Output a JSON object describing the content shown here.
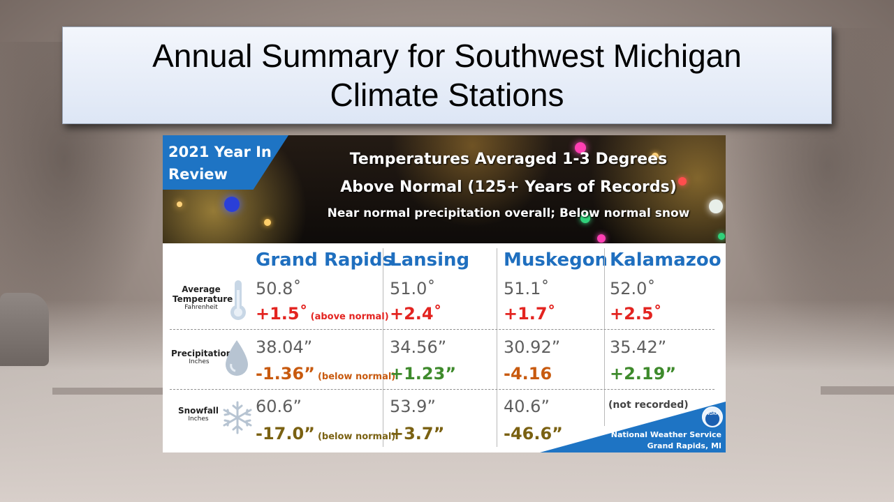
{
  "slide": {
    "title_line1": "Annual Summary for Southwest Michigan",
    "title_line2": "Climate Stations"
  },
  "graphic": {
    "ribbon": "2021 Year In Review",
    "headline1": "Temperatures Averaged 1-3 Degrees",
    "headline2": "Above Normal (125+ Years of Records)",
    "headline3": "Near normal precipitation overall; Below normal snow",
    "columns": [
      "Grand Rapids",
      "Lansing",
      "Muskegon",
      "Kalamazoo"
    ],
    "rows": {
      "temperature": {
        "label": "Average Temperature",
        "unit": "Fahrenheit"
      },
      "precipitation": {
        "label": "Precipitation",
        "unit": "Inches"
      },
      "snowfall": {
        "label": "Snowfall",
        "unit": "Inches"
      }
    },
    "values": {
      "grand_rapids": {
        "temp": "50.8˚",
        "temp_dev": "+1.5˚",
        "temp_note": "(above normal)",
        "precip": "38.04”",
        "precip_dev": "-1.36”",
        "precip_note": "(below normal)",
        "snow": "60.6”",
        "snow_dev": "-17.0”",
        "snow_note": "(below normal)"
      },
      "lansing": {
        "temp": "51.0˚",
        "temp_dev": "+2.4˚",
        "precip": "34.56”",
        "precip_dev": "+1.23”",
        "snow": "53.9”",
        "snow_dev": "+3.7”"
      },
      "muskegon": {
        "temp": "51.1˚",
        "temp_dev": "+1.7˚",
        "precip": "30.92”",
        "precip_dev": "-4.16",
        "snow": "40.6”",
        "snow_dev": "-46.6”"
      },
      "kalamazoo": {
        "temp": "52.0˚",
        "temp_dev": "+2.5˚",
        "precip": "35.42”",
        "precip_dev": "+2.19”",
        "snow_note": "(not recorded)"
      }
    },
    "footer_line1": "National Weather Service",
    "footer_line2": "Grand Rapids, MI",
    "noaa_logo": "NOAA"
  },
  "colors": {
    "column_header": "#1f6fbf",
    "above_normal_temp": "#e32420",
    "below_normal_precip": "#c85a0f",
    "above_normal_precip": "#3e8a2c",
    "snow_deviation": "#7a6112",
    "nws_blue": "#1e74c4"
  }
}
